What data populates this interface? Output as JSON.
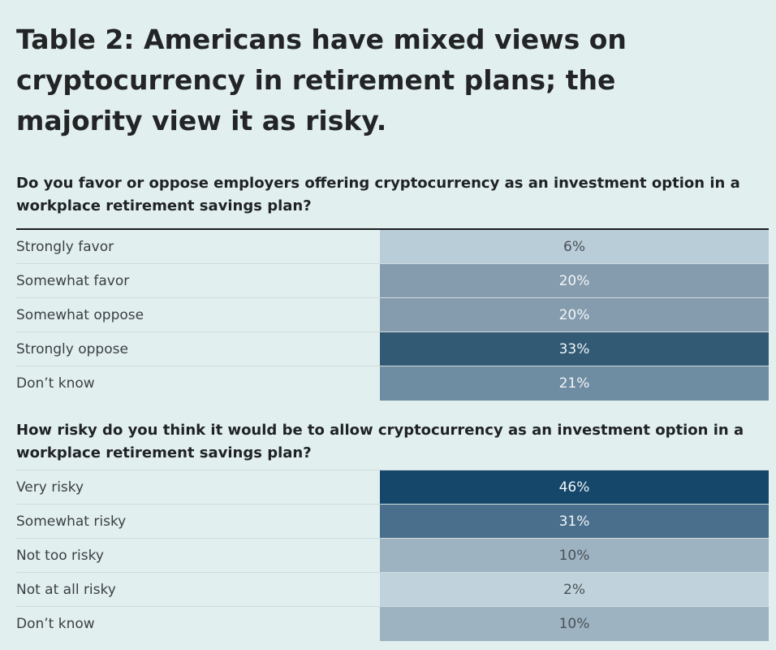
{
  "title": "Table 2: Americans have mixed views on cryptocurrency in retirement plans; the majority view it as risky.",
  "chart_data": [
    {
      "type": "table",
      "title": "Do you favor or oppose employers offering cryptocurrency as an investment option in a workplace retirement savings plan?",
      "rows": [
        {
          "label": "Strongly favor",
          "value": 6,
          "display": "6%",
          "color": "#b9cdd8"
        },
        {
          "label": "Somewhat favor",
          "value": 20,
          "display": "20%",
          "color": "#859cae"
        },
        {
          "label": "Somewhat oppose",
          "value": 20,
          "display": "20%",
          "color": "#859cae"
        },
        {
          "label": "Strongly oppose",
          "value": 33,
          "display": "33%",
          "color": "#325a75"
        },
        {
          "label": "Don’t know",
          "value": 21,
          "display": "21%",
          "color": "#6e8ca2"
        }
      ]
    },
    {
      "type": "table",
      "title": "How risky do you think it would be to allow cryptocurrency as an investment option in a workplace retirement savings plan?",
      "rows": [
        {
          "label": "Very risky",
          "value": 46,
          "display": "46%",
          "color": "#15476a"
        },
        {
          "label": "Somewhat risky",
          "value": 31,
          "display": "31%",
          "color": "#4a6f8c"
        },
        {
          "label": "Not too risky",
          "value": 10,
          "display": "10%",
          "color": "#9db3c2"
        },
        {
          "label": "Not at all risky",
          "value": 2,
          "display": "2%",
          "color": "#c0d3dd"
        },
        {
          "label": "Don’t know",
          "value": 10,
          "display": "10%",
          "color": "#9db3c2"
        }
      ]
    }
  ]
}
